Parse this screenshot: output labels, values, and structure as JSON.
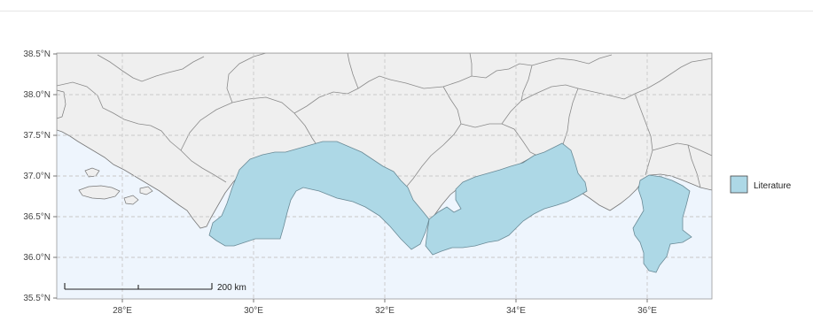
{
  "map": {
    "y_ticks": [
      "38.5°N",
      "38.0°N",
      "37.5°N",
      "37.0°N",
      "36.5°N",
      "36.0°N",
      "35.5°N"
    ],
    "x_ticks": [
      "28°E",
      "30°E",
      "32°E",
      "34°E",
      "36°E"
    ],
    "scale_bar": {
      "label": "200 km"
    },
    "legend": {
      "label": "Literature",
      "color": "#add8e6",
      "placement": "right"
    },
    "colors": {
      "sea": "#eef5fd",
      "land": "#efefef",
      "border": "#8a8a8a",
      "study_area": "#add8e6",
      "grid": "#c8c8c8"
    },
    "extent": {
      "lon": [
        27.0,
        37.0
      ],
      "lat": [
        35.5,
        38.5
      ]
    }
  }
}
